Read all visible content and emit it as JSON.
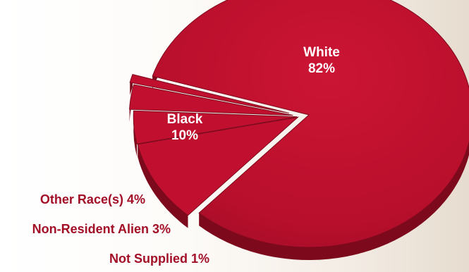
{
  "chart_data": {
    "type": "pie",
    "slices": [
      {
        "label": "White",
        "percent_label": "82%",
        "value": 82
      },
      {
        "label": "Black",
        "percent_label": "10%",
        "value": 10
      },
      {
        "label": "Other Race(s)",
        "percent_label": "4%",
        "value": 4
      },
      {
        "label": "Non-Resident Alien",
        "percent_label": "3%",
        "value": 3
      },
      {
        "label": "Not Supplied",
        "percent_label": "1%",
        "value": 1
      }
    ],
    "colors": {
      "slice": "#c1102f",
      "slice_dark": "#7d0a1c",
      "label_outside": "#a20f26"
    }
  }
}
